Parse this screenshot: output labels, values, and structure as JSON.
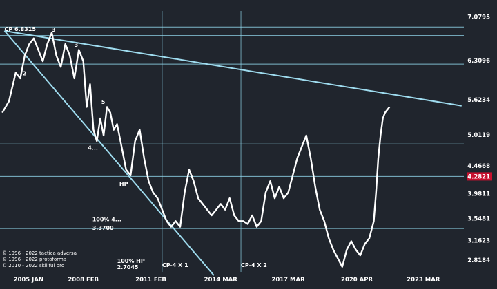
{
  "chart_data": {
    "type": "line",
    "title": "",
    "xlabel": "",
    "ylabel": "",
    "x_ticks": [
      "2005 JAN",
      "2008 FEB",
      "2011 FEB",
      "2014 MAR",
      "2017 MAR",
      "2020 APR",
      "2023 MAR"
    ],
    "x_tick_years": [
      2005.0,
      2008.1,
      2011.1,
      2014.2,
      2017.2,
      2020.25,
      2023.2
    ],
    "y_ticks": [
      "7.0795",
      "6.3096",
      "5.6234",
      "5.0119",
      "4.4668",
      "3.9811",
      "3.5481",
      "3.1623",
      "2.8184"
    ],
    "y_tick_values": [
      7.0795,
      6.3096,
      5.6234,
      5.0119,
      4.4668,
      3.9811,
      3.5481,
      3.1623,
      2.8184
    ],
    "ylim": [
      2.6,
      7.3
    ],
    "xlim": [
      2004.4,
      2025.0
    ],
    "last_price": {
      "label": "4.2821",
      "value": 4.2821,
      "color": "#c8102e"
    },
    "series": [
      {
        "line_color": "#ffffff",
        "x": [
          2004.5,
          2004.8,
          2005.1,
          2005.3,
          2005.5,
          2005.7,
          2005.9,
          2006.1,
          2006.3,
          2006.5,
          2006.7,
          2006.9,
          2007.1,
          2007.3,
          2007.5,
          2007.7,
          2007.9,
          2008.1,
          2008.25,
          2008.4,
          2008.55,
          2008.7,
          2008.85,
          2009.0,
          2009.15,
          2009.3,
          2009.45,
          2009.6,
          2009.8,
          2010.0,
          2010.2,
          2010.4,
          2010.6,
          2010.8,
          2011.0,
          2011.2,
          2011.4,
          2011.6,
          2011.8,
          2012.0,
          2012.2,
          2012.4,
          2012.6,
          2012.8,
          2013.0,
          2013.2,
          2013.4,
          2013.6,
          2013.8,
          2014.0,
          2014.2,
          2014.4,
          2014.6,
          2014.8,
          2015.0,
          2015.2,
          2015.4,
          2015.6,
          2015.8,
          2016.0,
          2016.2,
          2016.4,
          2016.6,
          2016.8,
          2017.0,
          2017.2,
          2017.4,
          2017.6,
          2017.8,
          2018.0,
          2018.2,
          2018.4,
          2018.6,
          2018.8,
          2019.0,
          2019.2,
          2019.4,
          2019.6,
          2019.8,
          2020.0,
          2020.2,
          2020.4,
          2020.6,
          2020.8,
          2021.0,
          2021.1,
          2021.2,
          2021.3,
          2021.4,
          2021.5,
          2021.6,
          2021.7
        ],
        "y": [
          5.4,
          5.6,
          6.1,
          6.0,
          6.4,
          6.6,
          6.7,
          6.5,
          6.3,
          6.6,
          6.8,
          6.4,
          6.2,
          6.6,
          6.4,
          6.0,
          6.5,
          6.3,
          5.5,
          5.9,
          5.1,
          4.9,
          5.3,
          5.0,
          5.5,
          5.4,
          5.1,
          5.2,
          4.8,
          4.4,
          4.3,
          4.9,
          5.1,
          4.6,
          4.2,
          4.0,
          3.9,
          3.7,
          3.5,
          3.4,
          3.5,
          3.4,
          4.0,
          4.4,
          4.2,
          3.9,
          3.8,
          3.7,
          3.6,
          3.7,
          3.8,
          3.7,
          3.9,
          3.6,
          3.5,
          3.5,
          3.45,
          3.6,
          3.4,
          3.5,
          4.0,
          4.2,
          3.9,
          4.1,
          3.9,
          4.0,
          4.3,
          4.6,
          4.8,
          5.0,
          4.6,
          4.1,
          3.7,
          3.5,
          3.2,
          3.0,
          2.85,
          2.7,
          3.0,
          3.15,
          3.0,
          2.9,
          3.1,
          3.2,
          3.5,
          4.0,
          4.6,
          5.0,
          5.3,
          5.4,
          5.45,
          5.5
        ]
      }
    ],
    "horizontal_levels": [
      6.9,
      6.75,
      6.25,
      4.85,
      4.2821,
      3.37
    ],
    "vertical_markers": [
      {
        "x": 2011.6,
        "label": "CP-4 X 1"
      },
      {
        "x": 2015.1,
        "label": "CP-4 X 2"
      }
    ],
    "trendlines": [
      {
        "from": [
          2004.6,
          6.8315
        ],
        "to": [
          2024.9,
          5.52
        ]
      },
      {
        "from": [
          2004.6,
          6.8315
        ],
        "to": [
          2013.9,
          2.55
        ]
      }
    ],
    "annotations": [
      {
        "text": "CP 6.8315",
        "x": 2004.6,
        "y": 6.8315
      },
      {
        "text": "2",
        "x": 2005.4,
        "y": 6.05
      },
      {
        "text": "3",
        "x": 2006.7,
        "y": 6.82
      },
      {
        "text": "3",
        "x": 2007.7,
        "y": 6.55
      },
      {
        "text": "5",
        "x": 2008.9,
        "y": 5.55
      },
      {
        "text": "4...",
        "x": 2008.3,
        "y": 4.75
      },
      {
        "text": "HP",
        "x": 2009.7,
        "y": 4.12
      },
      {
        "text": "100%  4...",
        "x": 2008.5,
        "y": 3.5
      },
      {
        "text": "3.3700",
        "x": 2008.5,
        "y": 3.35
      },
      {
        "text": "100% HP",
        "x": 2009.6,
        "y": 2.77
      },
      {
        "text": "2.7045",
        "x": 2009.6,
        "y": 2.66
      }
    ],
    "copyright": [
      "© 1996 - 2022 tactica adversa",
      "© 1996 - 2022 protoforma",
      "© 2010 - 2022 skillful pro"
    ],
    "grid": false,
    "legend": "none"
  }
}
